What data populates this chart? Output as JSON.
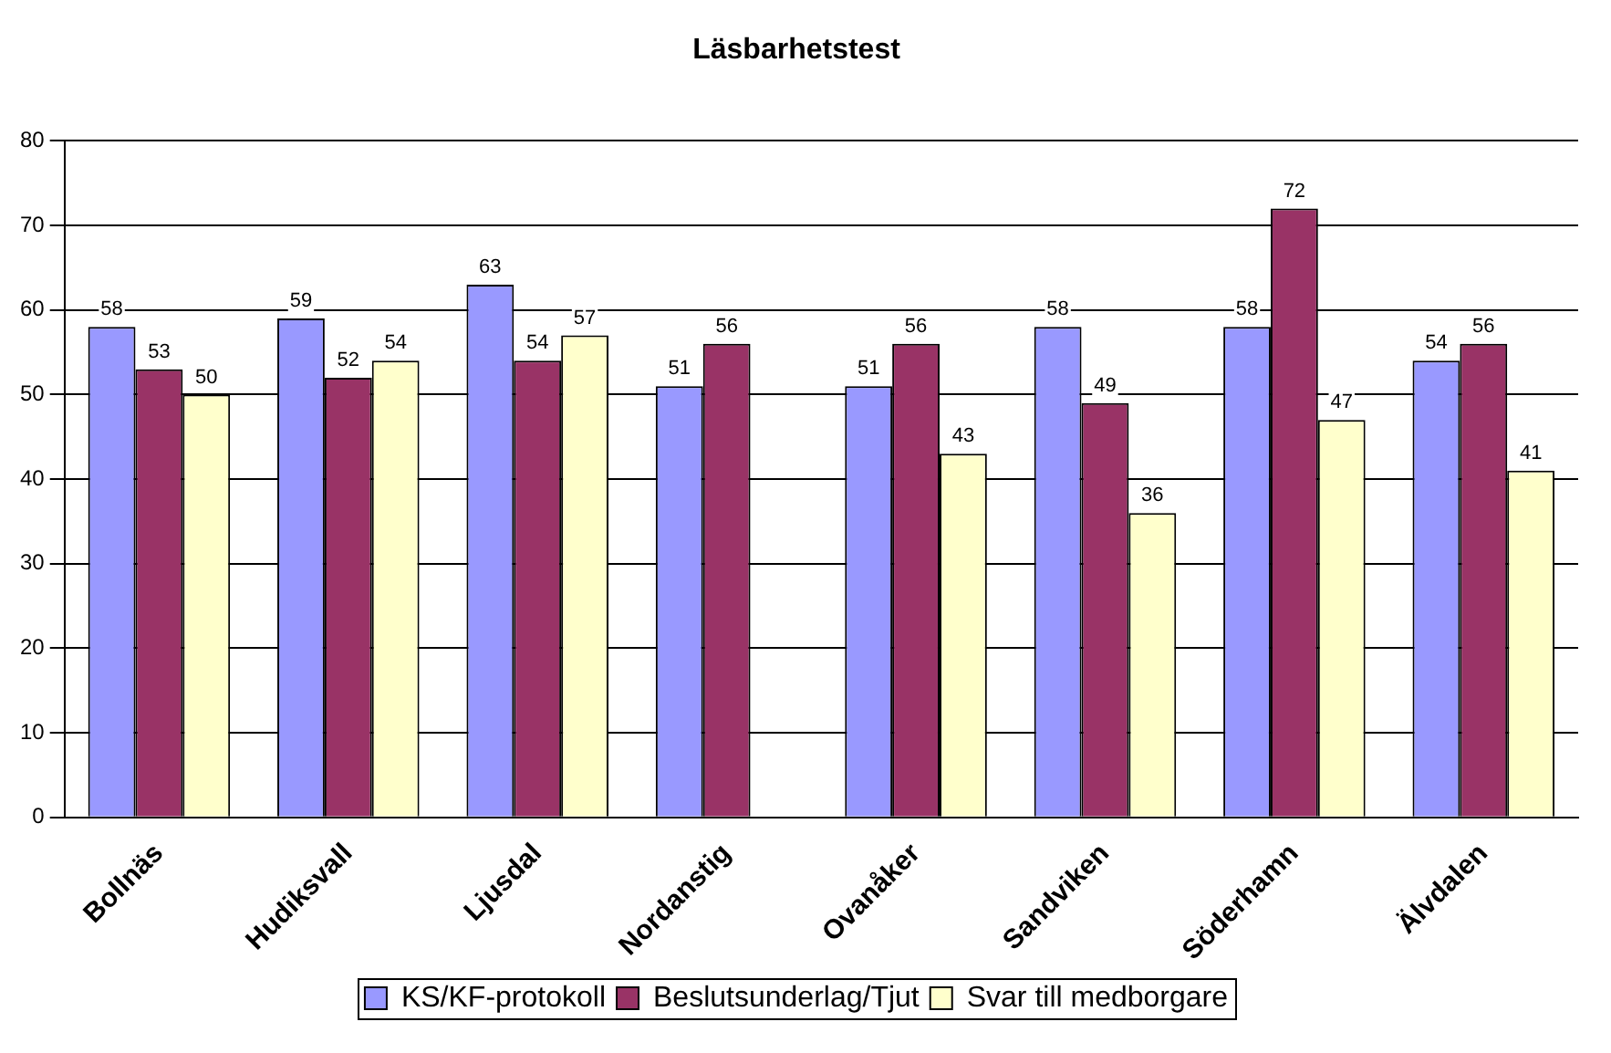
{
  "chart_data": {
    "type": "bar",
    "title": "Läsbarhetstest",
    "categories": [
      "Bollnäs",
      "Hudiksvall",
      "Ljusdal",
      "Nordanstig",
      "Ovanåker",
      "Sandviken",
      "Söderhamn",
      "Älvdalen"
    ],
    "series": [
      {
        "name": "KS/KF-protokoll",
        "color": "#9999ff",
        "values": [
          58,
          59,
          63,
          51,
          51,
          58,
          58,
          54
        ]
      },
      {
        "name": "Beslutsunderlag/Tjut",
        "color": "#993366",
        "values": [
          53,
          52,
          54,
          56,
          56,
          49,
          72,
          56
        ]
      },
      {
        "name": "Svar till medborgare",
        "color": "#ffffcc",
        "values": [
          50,
          54,
          57,
          null,
          43,
          36,
          47,
          41
        ]
      }
    ],
    "ylim": [
      0,
      80
    ],
    "yticks": [
      0,
      10,
      20,
      30,
      40,
      50,
      60,
      70,
      80
    ],
    "grid": "y",
    "legend": "bottom",
    "data_labels": true
  }
}
